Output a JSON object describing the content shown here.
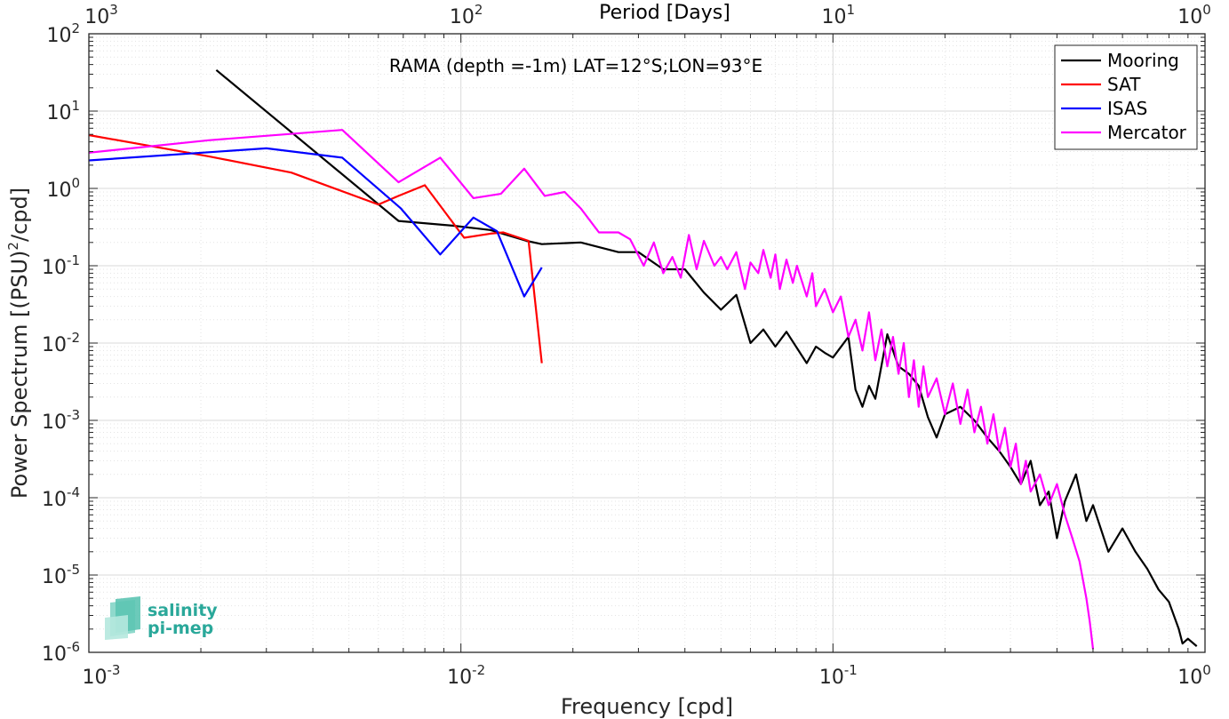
{
  "chart_data": {
    "type": "line",
    "scale": "log-log",
    "annotation": "RAMA (depth =-1m) LAT=12°S;LON=93°E",
    "xlabel": "Frequency [cpd]",
    "ylabel": "Power Spectrum [(PSU)²/cpd]",
    "ylabel_base": "Power Spectrum [(PSU)",
    "ylabel_sup": "2",
    "ylabel_tail": "/cpd]",
    "top_axis_label": "Period [Days]",
    "xlim": [
      0.001,
      1
    ],
    "ylim": [
      1e-06,
      100
    ],
    "grid": true,
    "minor_grid": true,
    "legend_position": "top-right",
    "x_ticks": [
      {
        "base": "10",
        "exp": "-3",
        "value": 0.001
      },
      {
        "base": "10",
        "exp": "-2",
        "value": 0.01
      },
      {
        "base": "10",
        "exp": "-1",
        "value": 0.1
      },
      {
        "base": "10",
        "exp": "0",
        "value": 1
      }
    ],
    "top_ticks": [
      {
        "base": "10",
        "exp": "3",
        "value": 0.001
      },
      {
        "base": "10",
        "exp": "2",
        "value": 0.01
      },
      {
        "base": "10",
        "exp": "1",
        "value": 0.1
      },
      {
        "base": "10",
        "exp": "0",
        "value": 1
      }
    ],
    "y_ticks": [
      {
        "base": "10",
        "exp": "2",
        "value": 100
      },
      {
        "base": "10",
        "exp": "1",
        "value": 10
      },
      {
        "base": "10",
        "exp": "0",
        "value": 1
      },
      {
        "base": "10",
        "exp": "-1",
        "value": 0.1
      },
      {
        "base": "10",
        "exp": "-2",
        "value": 0.01
      },
      {
        "base": "10",
        "exp": "-3",
        "value": 0.001
      },
      {
        "base": "10",
        "exp": "-4",
        "value": 0.0001
      },
      {
        "base": "10",
        "exp": "-5",
        "value": 1e-05
      },
      {
        "base": "10",
        "exp": "-6",
        "value": 1e-06
      }
    ],
    "series": [
      {
        "name": "Mooring",
        "color": "#000000",
        "points": [
          [
            0.0022,
            34
          ],
          [
            0.0068,
            0.38
          ],
          [
            0.0095,
            0.33
          ],
          [
            0.012,
            0.29
          ],
          [
            0.015,
            0.21
          ],
          [
            0.0165,
            0.19
          ],
          [
            0.021,
            0.2
          ],
          [
            0.0265,
            0.15
          ],
          [
            0.03,
            0.15
          ],
          [
            0.035,
            0.09
          ],
          [
            0.04,
            0.09
          ],
          [
            0.045,
            0.045
          ],
          [
            0.05,
            0.027
          ],
          [
            0.055,
            0.042
          ],
          [
            0.06,
            0.01
          ],
          [
            0.065,
            0.015
          ],
          [
            0.07,
            0.009
          ],
          [
            0.075,
            0.014
          ],
          [
            0.085,
            0.0055
          ],
          [
            0.09,
            0.009
          ],
          [
            0.095,
            0.0075
          ],
          [
            0.1,
            0.0065
          ],
          [
            0.11,
            0.012
          ],
          [
            0.115,
            0.0025
          ],
          [
            0.12,
            0.0015
          ],
          [
            0.125,
            0.0028
          ],
          [
            0.13,
            0.0019
          ],
          [
            0.14,
            0.013
          ],
          [
            0.15,
            0.005
          ],
          [
            0.16,
            0.004
          ],
          [
            0.17,
            0.0028
          ],
          [
            0.18,
            0.0011
          ],
          [
            0.19,
            0.0006
          ],
          [
            0.2,
            0.0012
          ],
          [
            0.22,
            0.0015
          ],
          [
            0.24,
            0.001
          ],
          [
            0.26,
            0.0006
          ],
          [
            0.28,
            0.0004
          ],
          [
            0.3,
            0.00025
          ],
          [
            0.32,
            0.00015
          ],
          [
            0.34,
            0.0003
          ],
          [
            0.36,
            8e-05
          ],
          [
            0.38,
            0.00012
          ],
          [
            0.4,
            3e-05
          ],
          [
            0.42,
            9e-05
          ],
          [
            0.45,
            0.0002
          ],
          [
            0.48,
            5e-05
          ],
          [
            0.5,
            8e-05
          ],
          [
            0.55,
            2e-05
          ],
          [
            0.6,
            4e-05
          ],
          [
            0.65,
            2e-05
          ],
          [
            0.7,
            1.2e-05
          ],
          [
            0.75,
            6.5e-06
          ],
          [
            0.8,
            4.5e-06
          ],
          [
            0.85,
            2e-06
          ],
          [
            0.87,
            1.3e-06
          ],
          [
            0.9,
            1.5e-06
          ],
          [
            0.95,
            1.2e-06
          ]
        ]
      },
      {
        "name": "SAT",
        "color": "#ff0000",
        "points": [
          [
            0.001,
            4.9
          ],
          [
            0.0021,
            2.6
          ],
          [
            0.0035,
            1.6
          ],
          [
            0.006,
            0.62
          ],
          [
            0.0068,
            0.8
          ],
          [
            0.008,
            1.1
          ],
          [
            0.0102,
            0.23
          ],
          [
            0.012,
            0.26
          ],
          [
            0.013,
            0.27
          ],
          [
            0.0152,
            0.21
          ],
          [
            0.0165,
            0.0055
          ]
        ]
      },
      {
        "name": "ISAS",
        "color": "#0000ff",
        "points": [
          [
            0.001,
            2.3
          ],
          [
            0.003,
            3.3
          ],
          [
            0.0048,
            2.5
          ],
          [
            0.0069,
            0.55
          ],
          [
            0.0088,
            0.14
          ],
          [
            0.0108,
            0.42
          ],
          [
            0.0125,
            0.28
          ],
          [
            0.0148,
            0.04
          ],
          [
            0.0165,
            0.095
          ]
        ]
      },
      {
        "name": "Mercator",
        "color": "#ff00ff",
        "points": [
          [
            0.001,
            2.9
          ],
          [
            0.0021,
            4.2
          ],
          [
            0.0048,
            5.7
          ],
          [
            0.0068,
            1.2
          ],
          [
            0.0088,
            2.5
          ],
          [
            0.0108,
            0.75
          ],
          [
            0.0128,
            0.85
          ],
          [
            0.0148,
            1.8
          ],
          [
            0.0168,
            0.8
          ],
          [
            0.019,
            0.9
          ],
          [
            0.021,
            0.55
          ],
          [
            0.0235,
            0.27
          ],
          [
            0.0265,
            0.27
          ],
          [
            0.0285,
            0.22
          ],
          [
            0.031,
            0.1
          ],
          [
            0.033,
            0.2
          ],
          [
            0.035,
            0.08
          ],
          [
            0.037,
            0.13
          ],
          [
            0.039,
            0.07
          ],
          [
            0.041,
            0.25
          ],
          [
            0.043,
            0.09
          ],
          [
            0.045,
            0.21
          ],
          [
            0.048,
            0.1
          ],
          [
            0.05,
            0.13
          ],
          [
            0.052,
            0.09
          ],
          [
            0.055,
            0.15
          ],
          [
            0.058,
            0.05
          ],
          [
            0.06,
            0.11
          ],
          [
            0.063,
            0.08
          ],
          [
            0.065,
            0.16
          ],
          [
            0.068,
            0.07
          ],
          [
            0.07,
            0.14
          ],
          [
            0.072,
            0.05
          ],
          [
            0.075,
            0.12
          ],
          [
            0.078,
            0.06
          ],
          [
            0.08,
            0.1
          ],
          [
            0.085,
            0.04
          ],
          [
            0.088,
            0.08
          ],
          [
            0.09,
            0.03
          ],
          [
            0.095,
            0.05
          ],
          [
            0.1,
            0.025
          ],
          [
            0.105,
            0.04
          ],
          [
            0.11,
            0.012
          ],
          [
            0.115,
            0.02
          ],
          [
            0.12,
            0.008
          ],
          [
            0.125,
            0.025
          ],
          [
            0.13,
            0.006
          ],
          [
            0.135,
            0.015
          ],
          [
            0.14,
            0.005
          ],
          [
            0.145,
            0.012
          ],
          [
            0.15,
            0.004
          ],
          [
            0.155,
            0.01
          ],
          [
            0.16,
            0.002
          ],
          [
            0.165,
            0.006
          ],
          [
            0.17,
            0.0015
          ],
          [
            0.175,
            0.005
          ],
          [
            0.18,
            0.002
          ],
          [
            0.19,
            0.0035
          ],
          [
            0.2,
            0.0012
          ],
          [
            0.21,
            0.003
          ],
          [
            0.22,
            0.0009
          ],
          [
            0.23,
            0.0025
          ],
          [
            0.24,
            0.0007
          ],
          [
            0.25,
            0.0015
          ],
          [
            0.26,
            0.0005
          ],
          [
            0.27,
            0.0012
          ],
          [
            0.28,
            0.0004
          ],
          [
            0.29,
            0.0008
          ],
          [
            0.3,
            0.00025
          ],
          [
            0.31,
            0.0005
          ],
          [
            0.32,
            0.00015
          ],
          [
            0.33,
            0.0003
          ],
          [
            0.34,
            0.00012
          ],
          [
            0.36,
            0.0002
          ],
          [
            0.38,
            8e-05
          ],
          [
            0.4,
            0.00015
          ],
          [
            0.42,
            6e-05
          ],
          [
            0.44,
            3e-05
          ],
          [
            0.46,
            1.5e-05
          ],
          [
            0.48,
            5e-06
          ],
          [
            0.49,
            2.5e-06
          ],
          [
            0.5,
            1.1e-06
          ]
        ]
      }
    ]
  },
  "logo": {
    "line1": "salinity",
    "line2": "pi-mep",
    "color": "#2aa89a"
  }
}
